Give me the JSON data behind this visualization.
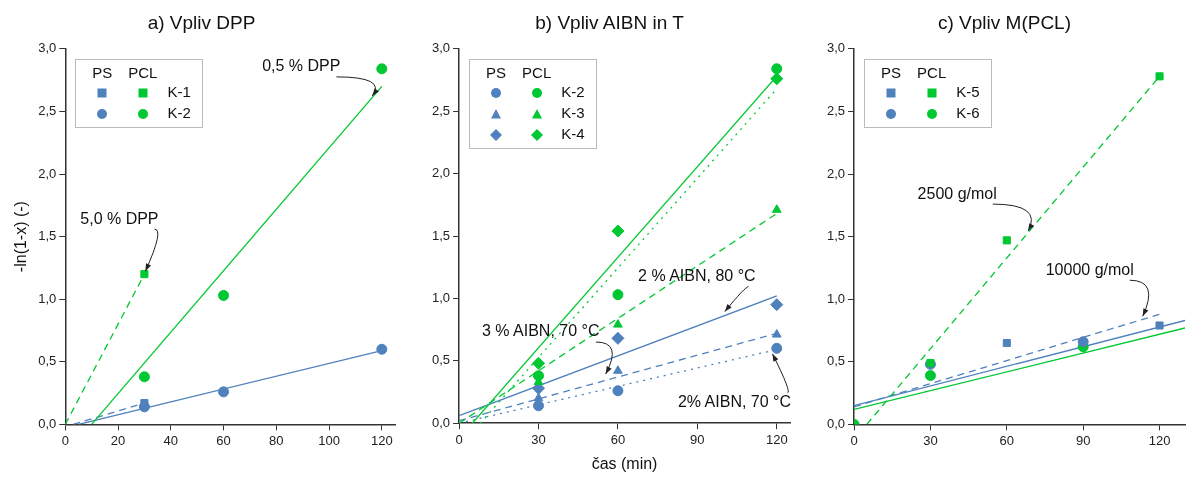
{
  "chart_data": [
    {
      "type": "scatter",
      "title": "a) Vpliv DPP",
      "ylabel": "-ln(1-x) (-)",
      "xlim": [
        0,
        125
      ],
      "xticks": [
        0,
        20,
        40,
        60,
        80,
        100,
        120
      ],
      "ylim": [
        0,
        3
      ],
      "yticks": [
        {
          "value": 0,
          "label": "0,0"
        },
        {
          "value": 0.5,
          "label": "0,5"
        },
        {
          "value": 1,
          "label": "1,0"
        },
        {
          "value": 1.5,
          "label": "1,5"
        },
        {
          "value": 2,
          "label": "2,0"
        },
        {
          "value": 2.5,
          "label": "2,5"
        },
        {
          "value": 3,
          "label": "3,0"
        }
      ],
      "grid": false,
      "legend": "top left",
      "annotations": [
        "PS",
        "PCL",
        {
          "text": "5,0 % DPP",
          "x": 30,
          "y": 1.2
        },
        {
          "text": "0,5 % DPP",
          "x": 116,
          "y": 2.6
        }
      ],
      "series": [
        {
          "type": "scatter",
          "color": "#4f81bd",
          "marker": "square",
          "x": [
            30
          ],
          "values": [
            0.17
          ]
        },
        {
          "type": "scatter",
          "name": "K-1",
          "color": "#00c832",
          "marker": "square",
          "x": [
            30
          ],
          "values": [
            1.2
          ]
        },
        {
          "type": "scatter",
          "color": "#4f81bd",
          "marker": "circle",
          "x": [
            30,
            60,
            120
          ],
          "values": [
            0.14,
            0.26,
            0.6
          ]
        },
        {
          "type": "scatter",
          "name": "K-2",
          "color": "#00c832",
          "marker": "circle",
          "x": [
            30,
            60,
            120
          ],
          "values": [
            0.38,
            1.03,
            2.84
          ]
        },
        {
          "type": "line",
          "color": "#00c832",
          "line_style": "dashed",
          "x": [
            0,
            30
          ],
          "values": [
            0,
            1.2
          ]
        },
        {
          "type": "line",
          "color": "#00c832",
          "line_style": "solid",
          "x": [
            10,
            120
          ],
          "values": [
            0,
            2.7
          ]
        },
        {
          "type": "line",
          "color": "#4f81bd",
          "line_style": "dashed",
          "x": [
            3,
            30
          ],
          "values": [
            0,
            0.17
          ]
        },
        {
          "type": "line",
          "color": "#4f81bd",
          "line_style": "solid",
          "x": [
            5,
            120
          ],
          "values": [
            0,
            0.59
          ]
        }
      ]
    },
    {
      "type": "scatter",
      "title": "b) Vpliv AIBN in T",
      "xlabel": "čas (min)",
      "xlim": [
        0,
        125
      ],
      "xticks": [
        0,
        30,
        60,
        90,
        120
      ],
      "ylim": [
        0,
        3
      ],
      "yticks": [
        {
          "value": 0,
          "label": "0,0"
        },
        {
          "value": 0.5,
          "label": "0,5"
        },
        {
          "value": 1,
          "label": "1,0"
        },
        {
          "value": 1.5,
          "label": "1,5"
        },
        {
          "value": 2,
          "label": "2,0"
        },
        {
          "value": 2.5,
          "label": "2,5"
        },
        {
          "value": 3,
          "label": "3,0"
        }
      ],
      "grid": false,
      "legend": "top left",
      "annotations": [
        "PS",
        "PCL",
        {
          "text": "2 % AIBN, 80 °C",
          "x": 100,
          "y": 0.87
        },
        {
          "text": "3 % AIBN, 70 °C",
          "x": 55,
          "y": 0.37
        },
        {
          "text": "2% AIBN, 70 °C",
          "x": 118,
          "y": 0.58
        }
      ],
      "series": [
        {
          "type": "scatter",
          "color": "#4f81bd",
          "marker": "circle",
          "x": [
            30,
            60,
            120
          ],
          "values": [
            0.14,
            0.26,
            0.6
          ]
        },
        {
          "type": "scatter",
          "name": "K-2",
          "color": "#00c832",
          "marker": "circle",
          "x": [
            30,
            60,
            120
          ],
          "values": [
            0.38,
            1.03,
            2.84
          ]
        },
        {
          "type": "scatter",
          "color": "#4f81bd",
          "marker": "triangle",
          "x": [
            30,
            60,
            120
          ],
          "values": [
            0.2,
            0.42,
            0.71
          ]
        },
        {
          "type": "scatter",
          "name": "K-3",
          "color": "#00c832",
          "marker": "triangle",
          "x": [
            30,
            60,
            120
          ],
          "values": [
            0.33,
            0.79,
            1.71
          ]
        },
        {
          "type": "scatter",
          "color": "#4f81bd",
          "marker": "diamond",
          "x": [
            30,
            60,
            120
          ],
          "values": [
            0.28,
            0.68,
            0.95
          ]
        },
        {
          "type": "scatter",
          "name": "K-4",
          "color": "#00c832",
          "marker": "diamond",
          "x": [
            30,
            60,
            120
          ],
          "values": [
            0.48,
            1.54,
            2.76
          ]
        },
        {
          "type": "line",
          "color": "#00c832",
          "line_style": "solid",
          "x": [
            5,
            120
          ],
          "values": [
            0,
            2.78
          ]
        },
        {
          "type": "line",
          "color": "#00c832",
          "line_style": "dotted",
          "x": [
            8,
            120
          ],
          "values": [
            0,
            2.68
          ]
        },
        {
          "type": "line",
          "color": "#00c832",
          "line_style": "dashed",
          "x": [
            0,
            120
          ],
          "values": [
            0,
            1.68
          ]
        },
        {
          "type": "line",
          "color": "#4f81bd",
          "line_style": "solid",
          "x": [
            0,
            120
          ],
          "values": [
            0.06,
            1.02
          ]
        },
        {
          "type": "line",
          "color": "#4f81bd",
          "line_style": "dashed",
          "x": [
            0,
            120
          ],
          "values": [
            0.02,
            0.72
          ]
        },
        {
          "type": "line",
          "color": "#4f81bd",
          "line_style": "dotted",
          "x": [
            0,
            120
          ],
          "values": [
            0,
            0.59
          ]
        }
      ]
    },
    {
      "type": "scatter",
      "title": "c) Vpliv M(PCL)",
      "xlim": [
        0,
        130
      ],
      "xticks": [
        0,
        30,
        60,
        90,
        120
      ],
      "ylim": [
        0,
        3
      ],
      "yticks": [
        {
          "value": 0,
          "label": "0,0"
        },
        {
          "value": 0.5,
          "label": "0,5"
        },
        {
          "value": 1,
          "label": "1,0"
        },
        {
          "value": 1.5,
          "label": "1,5"
        },
        {
          "value": 2,
          "label": "2,0"
        },
        {
          "value": 2.5,
          "label": "2,5"
        },
        {
          "value": 3,
          "label": "3,0"
        }
      ],
      "grid": false,
      "legend": "top left",
      "annotations": [
        "PS",
        "PCL",
        {
          "text": "2500 g/mol",
          "x": 68,
          "y": 1.52
        },
        {
          "text": "10000 g/mol",
          "x": 113,
          "y": 0.84
        }
      ],
      "series": [
        {
          "type": "scatter",
          "color": "#4f81bd",
          "marker": "square",
          "x": [
            60,
            120
          ],
          "values": [
            0.65,
            0.79
          ]
        },
        {
          "type": "scatter",
          "name": "K-5",
          "color": "#00c832",
          "marker": "square",
          "x": [
            30,
            60,
            120
          ],
          "values": [
            0.49,
            1.47,
            2.78
          ]
        },
        {
          "type": "scatter",
          "color": "#4f81bd",
          "marker": "circle",
          "x": [
            30,
            90
          ],
          "values": [
            0.48,
            0.66
          ]
        },
        {
          "type": "scatter",
          "name": "K-6",
          "color": "#00c832",
          "marker": "circle",
          "x": [
            0,
            30,
            90
          ],
          "values": [
            0,
            0.39,
            0.62
          ]
        },
        {
          "type": "line",
          "color": "#00c832",
          "line_style": "dashed",
          "x": [
            5,
            120
          ],
          "values": [
            0,
            2.78
          ]
        },
        {
          "type": "line",
          "color": "#4f81bd",
          "line_style": "dashed",
          "x": [
            0,
            120
          ],
          "values": [
            0.14,
            0.88
          ]
        },
        {
          "type": "line",
          "color": "#4f81bd",
          "line_style": "solid",
          "x": [
            0,
            130
          ],
          "values": [
            0.15,
            0.83
          ]
        },
        {
          "type": "line",
          "color": "#00c832",
          "line_style": "solid",
          "x": [
            0,
            130
          ],
          "values": [
            0.12,
            0.77
          ]
        }
      ]
    }
  ]
}
